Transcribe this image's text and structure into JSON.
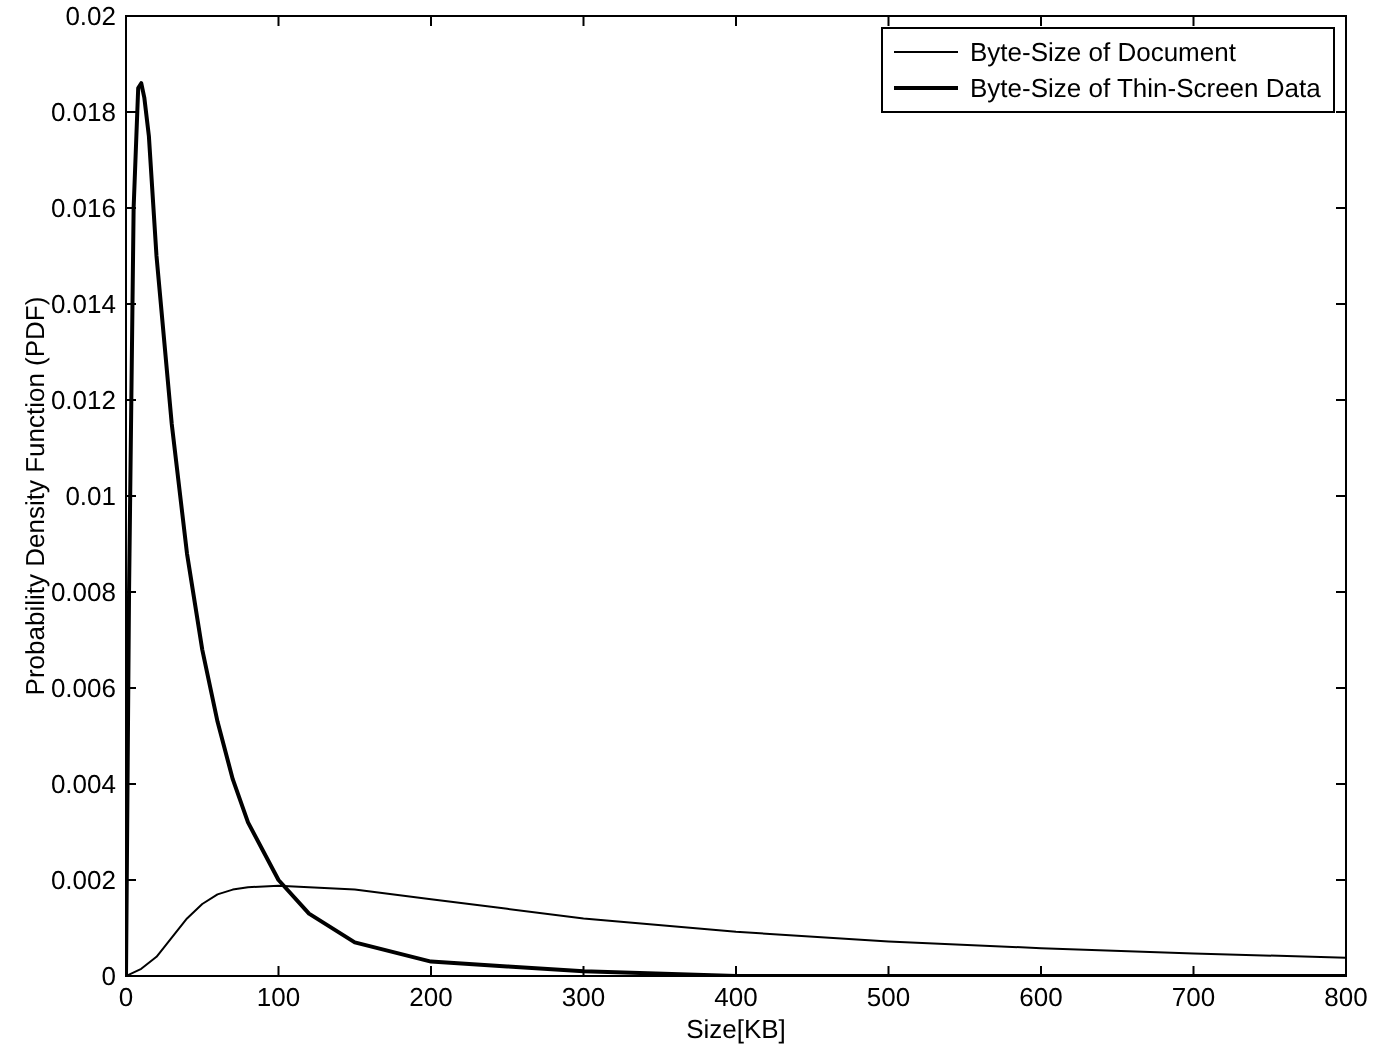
{
  "chart_data": {
    "type": "line",
    "xlabel": "Size[KB]",
    "ylabel": "Probability Density Function (PDF)",
    "xlim": [
      0,
      800
    ],
    "xticks": [
      0,
      100,
      200,
      300,
      400,
      500,
      600,
      700,
      800
    ],
    "ylim": [
      0,
      0.02
    ],
    "yticks": [
      0,
      0.002,
      0.004,
      0.006,
      0.008,
      0.01,
      0.012,
      0.014,
      0.016,
      0.018,
      0.02
    ],
    "legend": "top right",
    "grid": false,
    "line_style": "solid",
    "series": [
      {
        "name": "Byte-Size of Document",
        "color": "#000000",
        "x": [
          0,
          10,
          20,
          30,
          40,
          50,
          60,
          70,
          80,
          100,
          120,
          150,
          200,
          250,
          300,
          400,
          500,
          600,
          700,
          800
        ],
        "values": [
          0,
          0.00015,
          0.0004,
          0.0008,
          0.0012,
          0.0015,
          0.0017,
          0.0018,
          0.00185,
          0.00188,
          0.00185,
          0.0018,
          0.0016,
          0.0014,
          0.0012,
          0.00092,
          0.00072,
          0.00058,
          0.00047,
          0.00038
        ]
      },
      {
        "name": "Byte-Size of Thin-Screen Data",
        "color": "#000000",
        "x": [
          0,
          2,
          5,
          8,
          10,
          12,
          15,
          20,
          30,
          40,
          50,
          60,
          70,
          80,
          100,
          120,
          150,
          200,
          250,
          300,
          400,
          500,
          600,
          700,
          800
        ],
        "values": [
          0,
          0.008,
          0.016,
          0.0185,
          0.0186,
          0.0183,
          0.0175,
          0.015,
          0.0115,
          0.0088,
          0.0068,
          0.0053,
          0.0041,
          0.0032,
          0.002,
          0.0013,
          0.0007,
          0.0003,
          0.0002,
          0.0001,
          0,
          0,
          0,
          0,
          0
        ]
      }
    ]
  }
}
